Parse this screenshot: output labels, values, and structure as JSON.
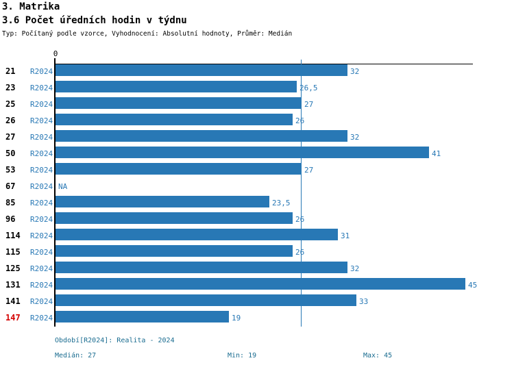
{
  "header": {
    "title": "3. Matrika",
    "subtitle": "3.6 Počet úředních hodin v týdnu",
    "meta": "Typ: Počítaný podle vzorce, Vyhodnocení: Absolutní hodnoty, Průměr: Medián"
  },
  "colors": {
    "bar": "#2878B5",
    "value_label": "#2878B5",
    "period_label": "#2878B5",
    "id_normal": "#000000",
    "id_highlight": "#D40000",
    "median_line": "#2878B5",
    "legend_text": "#1A6C90",
    "axis": "#000000"
  },
  "chart_data": {
    "type": "bar",
    "orientation": "horizontal",
    "title": "3.6 Počet úředních hodin v týdnu",
    "x_axis": {
      "origin_tick_label": "0",
      "min": 0,
      "max": 45.8,
      "grid": false
    },
    "median_value": 27,
    "period_label": "R2024",
    "na_label": "NA",
    "rows": [
      {
        "id": "21",
        "value": 32,
        "label": "32",
        "highlight": false
      },
      {
        "id": "23",
        "value": 26.5,
        "label": "26,5",
        "highlight": false
      },
      {
        "id": "25",
        "value": 27,
        "label": "27",
        "highlight": false
      },
      {
        "id": "26",
        "value": 26,
        "label": "26",
        "highlight": false
      },
      {
        "id": "27",
        "value": 32,
        "label": "32",
        "highlight": false
      },
      {
        "id": "50",
        "value": 41,
        "label": "41",
        "highlight": false
      },
      {
        "id": "53",
        "value": 27,
        "label": "27",
        "highlight": false
      },
      {
        "id": "67",
        "value": null,
        "label": "NA",
        "highlight": false
      },
      {
        "id": "85",
        "value": 23.5,
        "label": "23,5",
        "highlight": false
      },
      {
        "id": "96",
        "value": 26,
        "label": "26",
        "highlight": false
      },
      {
        "id": "114",
        "value": 31,
        "label": "31",
        "highlight": false
      },
      {
        "id": "115",
        "value": 26,
        "label": "26",
        "highlight": false
      },
      {
        "id": "125",
        "value": 32,
        "label": "32",
        "highlight": false
      },
      {
        "id": "131",
        "value": 45,
        "label": "45",
        "highlight": false
      },
      {
        "id": "141",
        "value": 33,
        "label": "33",
        "highlight": false
      },
      {
        "id": "147",
        "value": 19,
        "label": "19",
        "highlight": true
      }
    ]
  },
  "legend": {
    "period": "Období[R2024]: Realita - 2024",
    "median": "Medián: 27",
    "min": "Min: 19",
    "max": "Max: 45"
  }
}
